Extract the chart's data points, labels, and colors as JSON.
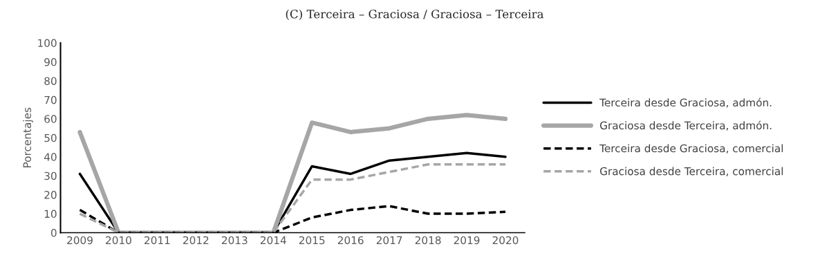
{
  "chart_data": {
    "type": "line",
    "title": "(C) Terceira – Graciosa / Graciosa – Terceira",
    "ylabel": "Porcentajes",
    "categories": [
      "2009",
      "2010",
      "2011",
      "2012",
      "2013",
      "2014",
      "2015",
      "2016",
      "2017",
      "2018",
      "2019",
      "2020"
    ],
    "series": [
      {
        "name": "Terceira desde Graciosa, admón.",
        "color": "#000000",
        "line_style": "solid",
        "values": [
          31,
          0,
          0,
          0,
          0,
          0,
          35,
          31,
          38,
          40,
          42,
          40
        ]
      },
      {
        "name": "Graciosa desde Terceira, admón.",
        "color": "#a6a6a6",
        "line_style": "solid",
        "values": [
          53,
          0,
          0,
          0,
          0,
          0,
          58,
          53,
          55,
          60,
          62,
          60
        ]
      },
      {
        "name": "Terceira desde Graciosa, comercial",
        "color": "#000000",
        "line_style": "dashed",
        "values": [
          12,
          0,
          0,
          0,
          0,
          0,
          8,
          12,
          14,
          10,
          10,
          11
        ]
      },
      {
        "name": "Graciosa desde Terceira, comercial",
        "color": "#a6a6a6",
        "line_style": "dashed",
        "values": [
          10,
          0,
          0,
          0,
          0,
          0,
          28,
          28,
          32,
          36,
          36,
          36
        ]
      }
    ],
    "ylim": [
      0,
      100
    ],
    "yticks": [
      0,
      10,
      20,
      30,
      40,
      50,
      60,
      70,
      80,
      90,
      100
    ],
    "grid": false,
    "legend": "right",
    "marker": "none"
  }
}
